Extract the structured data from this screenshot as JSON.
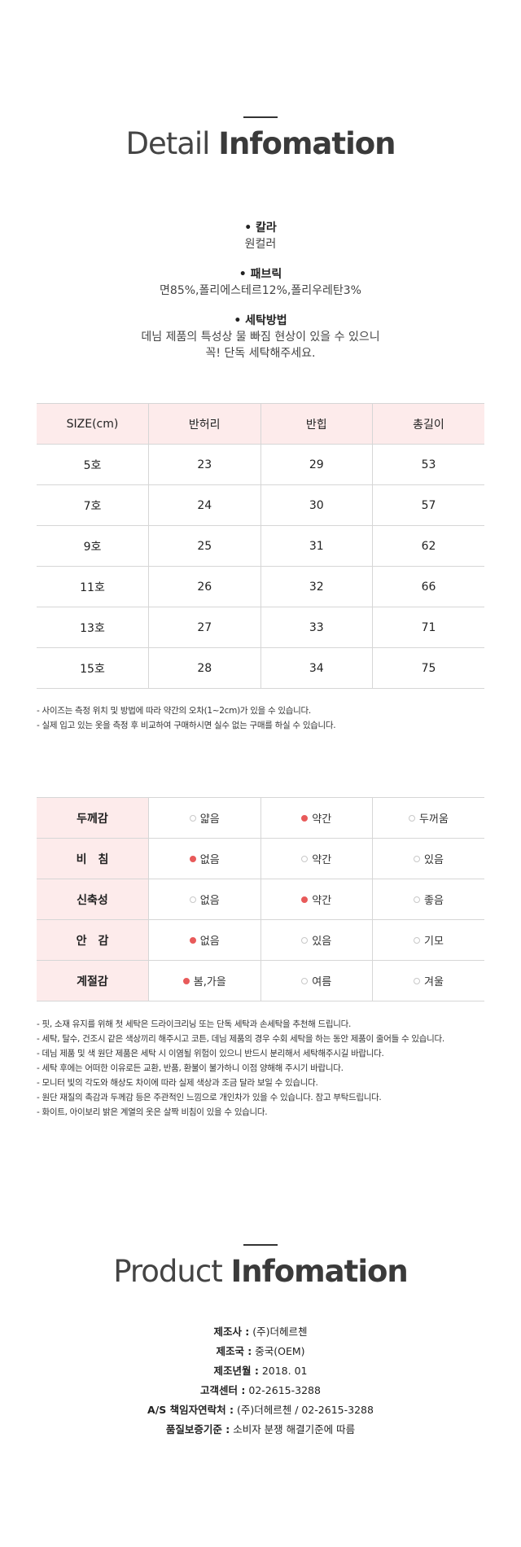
{
  "detail": {
    "title_light": "Detail",
    "title_bold": "Infomation",
    "specs": [
      {
        "label": "칼라",
        "lines": [
          "원컬러"
        ]
      },
      {
        "label": "패브릭",
        "lines": [
          "면85%,폴리에스테르12%,폴리우레탄3%"
        ]
      },
      {
        "label": "세탁방법",
        "lines": [
          "데님 제품의 특성상 물 빠짐 현상이 있을 수 있으니",
          "꼭! 단독 세탁해주세요."
        ]
      }
    ]
  },
  "size_table": {
    "headers": [
      "SIZE(cm)",
      "반허리",
      "반힙",
      "총길이"
    ],
    "rows": [
      [
        "5호",
        "23",
        "29",
        "53"
      ],
      [
        "7호",
        "24",
        "30",
        "57"
      ],
      [
        "9호",
        "25",
        "31",
        "62"
      ],
      [
        "11호",
        "26",
        "32",
        "66"
      ],
      [
        "13호",
        "27",
        "33",
        "71"
      ],
      [
        "15호",
        "28",
        "34",
        "75"
      ]
    ]
  },
  "size_notes": [
    "- 사이즈는 측정 위치 및 방법에 따라 약간의 오차(1~2cm)가 있을 수 있습니다.",
    "- 실제 입고 있는 옷을 측정 후 비교하여 구매하시면 실수 없는 구매를 하실 수 있습니다."
  ],
  "feel_table": {
    "rows": [
      {
        "head": "두께감",
        "options": [
          "얇음",
          "약간",
          "두꺼움"
        ],
        "selected": 1
      },
      {
        "head": "비　침",
        "options": [
          "없음",
          "약간",
          "있음"
        ],
        "selected": 0
      },
      {
        "head": "신축성",
        "options": [
          "없음",
          "약간",
          "좋음"
        ],
        "selected": 1
      },
      {
        "head": "안　감",
        "options": [
          "없음",
          "있음",
          "기모"
        ],
        "selected": 0
      },
      {
        "head": "계절감",
        "options": [
          "봄,가을",
          "여름",
          "겨울"
        ],
        "selected": 0
      }
    ],
    "accent_color": "#e85a5a"
  },
  "care_notes": [
    "- 핏, 소재 유지를 위해 첫 세탁은 드라이크리닝 또는 단독 세탁과 손세탁을 추천해 드립니다.",
    "- 세탁, 탈수, 건조시 같은 색상끼리 해주시고 코튼, 데님 제품의 경우 수회 세탁을 하는 동안 제품이 줄어들 수 있습니다.",
    "- 데님 제품 및 색 원단 제품은 세탁 시 이염될 위험이 있으니 반드시 분리해서 세탁해주시길 바랍니다.",
    "- 세탁 후에는 어떠한 이유로든 교환, 반품, 환불이 불가하니 이점 양해해 주시기 바랍니다.",
    "- 모니터 빛의 각도와 해상도 차이에 따라 실제 색상과 조금 달라 보일 수 있습니다.",
    "- 원단 재질의 촉감과 두께감 등은 주관적인 느낌으로 개인차가 있을 수 있습니다. 참고 부탁드립니다.",
    "- 화이트, 아이보리 밝은 계열의 옷은 살짝 비침이 있을 수 있습니다."
  ],
  "product": {
    "title_light": "Product",
    "title_bold": "Infomation",
    "rows": [
      {
        "label": "제조사 :",
        "value": "(주)더헤르첸"
      },
      {
        "label": "제조국 :",
        "value": "중국(OEM)"
      },
      {
        "label": "제조년월 :",
        "value": "2018. 01"
      },
      {
        "label": "고객센터 :",
        "value": "02-2615-3288"
      },
      {
        "label": "A/S 책임자연락처 :",
        "value": "(주)더헤르첸 / 02-2615-3288"
      },
      {
        "label": "품질보증기준 :",
        "value": "소비자 분쟁 해결기준에 따름"
      }
    ]
  }
}
